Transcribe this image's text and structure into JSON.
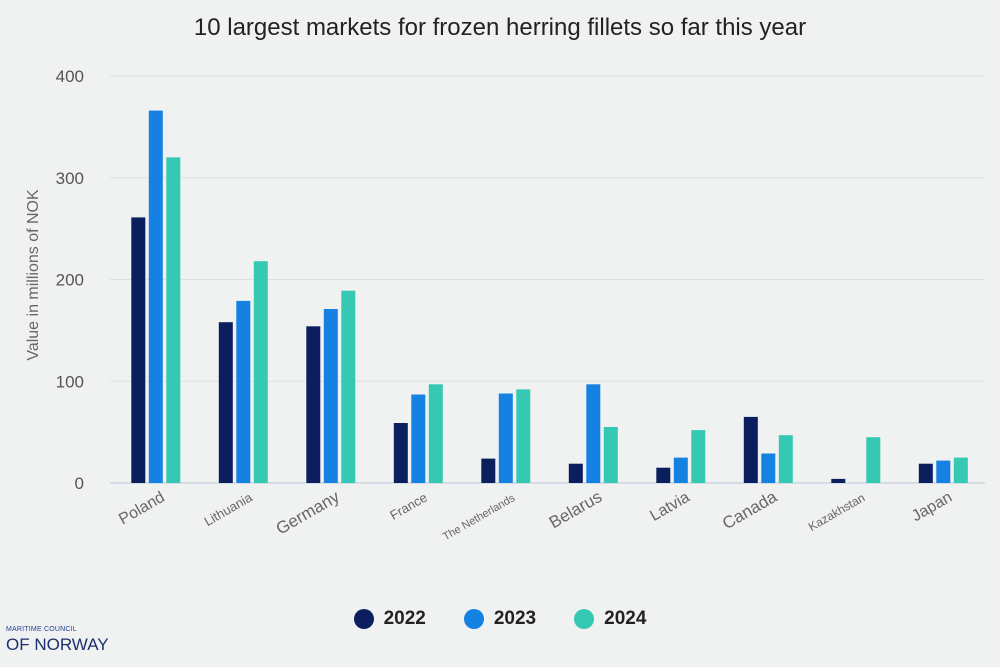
{
  "chart_data": {
    "type": "bar",
    "title": "10 largest markets for frozen herring fillets so far this year",
    "ylabel": "Value in millions of NOK",
    "xlabel": "",
    "ylim": [
      0,
      400
    ],
    "yticks": [
      0,
      100,
      200,
      300,
      400
    ],
    "grid": true,
    "legend_position": "bottom",
    "categories": [
      "Poland",
      "Lithuania",
      "Germany",
      "France",
      "The Netherlands",
      "Belarus",
      "Latvia",
      "Canada",
      "Kazakhstan",
      "Japan"
    ],
    "series": [
      {
        "name": "2022",
        "color": "#0b1f5e",
        "values": [
          261,
          158,
          154,
          59,
          24,
          19,
          15,
          65,
          4,
          19
        ]
      },
      {
        "name": "2023",
        "color": "#1581e3",
        "values": [
          366,
          179,
          171,
          87,
          88,
          97,
          25,
          29,
          0,
          22
        ]
      },
      {
        "name": "2024",
        "color": "#35c9b4",
        "values": [
          320,
          218,
          189,
          97,
          92,
          55,
          52,
          47,
          45,
          25
        ]
      }
    ]
  },
  "brand": {
    "line1": "MARITIME COUNCIL",
    "line2": "OF NORWAY"
  }
}
